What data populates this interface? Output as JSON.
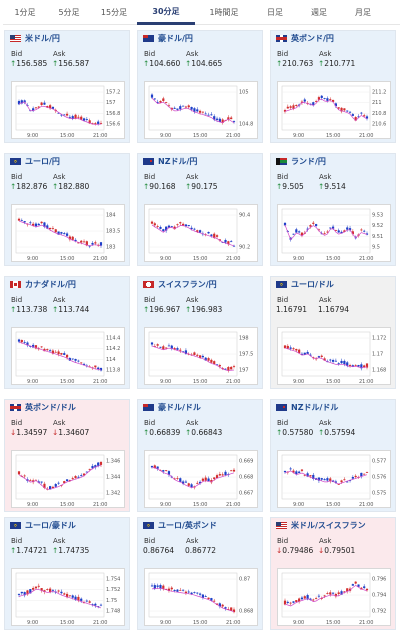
{
  "tabs": [
    "1分足",
    "5分足",
    "15分足",
    "30分足",
    "1時間足",
    "日足",
    "週足",
    "月足"
  ],
  "active_tab": 3,
  "labels": {
    "bid": "Bid",
    "ask": "Ask"
  },
  "x_ticks": [
    "9:00",
    "15:00",
    "21:00"
  ],
  "cards": [
    {
      "name": "米ドル/円",
      "flag": "us-jp",
      "bid": "156.585",
      "ask": "156.587",
      "dir": "up",
      "theme": "blue",
      "y_ticks": [
        "157.2",
        "157",
        "156.8",
        "156.6"
      ],
      "trend": [
        0.35,
        0.3,
        0.55,
        0.5,
        0.4,
        0.45,
        0.5,
        0.6,
        0.7,
        0.75,
        0.72,
        0.8,
        0.85,
        0.9,
        0.88
      ]
    },
    {
      "name": "豪ドル/円",
      "flag": "au-jp",
      "bid": "104.660",
      "ask": "104.665",
      "dir": "up",
      "theme": "blue",
      "y_ticks": [
        "105",
        "104.8"
      ],
      "trend": [
        0.2,
        0.35,
        0.3,
        0.45,
        0.55,
        0.5,
        0.45,
        0.55,
        0.6,
        0.65,
        0.7,
        0.8,
        0.85,
        0.75,
        0.85
      ]
    },
    {
      "name": "英ポンド/円",
      "flag": "gb-jp",
      "bid": "210.763",
      "ask": "210.771",
      "dir": "up",
      "theme": "blue",
      "y_ticks": [
        "211.2",
        "211",
        "210.8",
        "210.6"
      ],
      "trend": [
        0.55,
        0.5,
        0.45,
        0.3,
        0.35,
        0.4,
        0.2,
        0.3,
        0.25,
        0.5,
        0.55,
        0.6,
        0.8,
        0.65,
        0.75
      ]
    },
    {
      "name": "ユーロ/円",
      "flag": "eu-jp",
      "bid": "182.876",
      "ask": "182.880",
      "dir": "up",
      "theme": "blue",
      "y_ticks": [
        "184",
        "183.5",
        "183"
      ],
      "trend": [
        0.2,
        0.25,
        0.3,
        0.35,
        0.3,
        0.4,
        0.5,
        0.55,
        0.6,
        0.7,
        0.75,
        0.8,
        0.85,
        0.82,
        0.85
      ]
    },
    {
      "name": "NZドル/円",
      "flag": "nz-jp",
      "bid": "90.168",
      "ask": "90.175",
      "dir": "up",
      "theme": "blue",
      "y_ticks": [
        "90.4",
        "90.2"
      ],
      "trend": [
        0.3,
        0.4,
        0.5,
        0.35,
        0.4,
        0.3,
        0.35,
        0.45,
        0.5,
        0.55,
        0.6,
        0.65,
        0.75,
        0.8,
        0.85
      ]
    },
    {
      "name": "ランド/円",
      "flag": "za-jp",
      "bid": "9.505",
      "ask": "9.514",
      "dir": "up",
      "theme": "blue",
      "y_ticks": [
        "9.53",
        "9.52",
        "9.51",
        "9.5"
      ],
      "trend": [
        0.3,
        0.7,
        0.5,
        0.6,
        0.4,
        0.3,
        0.5,
        0.6,
        0.35,
        0.55,
        0.5,
        0.4,
        0.65,
        0.5,
        0.55
      ]
    },
    {
      "name": "カナダドル/円",
      "flag": "ca-jp",
      "bid": "113.738",
      "ask": "113.744",
      "dir": "up",
      "theme": "blue",
      "y_ticks": [
        "114.4",
        "114.2",
        "114",
        "113.8"
      ],
      "trend": [
        0.15,
        0.2,
        0.25,
        0.3,
        0.35,
        0.4,
        0.45,
        0.5,
        0.55,
        0.65,
        0.7,
        0.75,
        0.8,
        0.85,
        0.88
      ]
    },
    {
      "name": "スイスフラン/円",
      "flag": "ch-jp",
      "bid": "196.967",
      "ask": "196.983",
      "dir": "up",
      "theme": "blue",
      "y_ticks": [
        "198",
        "197.5",
        "197"
      ],
      "trend": [
        0.25,
        0.3,
        0.35,
        0.3,
        0.35,
        0.4,
        0.45,
        0.5,
        0.55,
        0.6,
        0.7,
        0.75,
        0.85,
        0.9,
        0.88
      ]
    },
    {
      "name": "ユーロ/ドル",
      "flag": "eu-us",
      "bid": "1.16791",
      "ask": "1.16794",
      "dir": "flat",
      "theme": "gray",
      "y_ticks": [
        "1.172",
        "1.17",
        "1.168"
      ],
      "trend": [
        0.3,
        0.35,
        0.4,
        0.5,
        0.45,
        0.6,
        0.55,
        0.65,
        0.7,
        0.75,
        0.72,
        0.8,
        0.78,
        0.82,
        0.8
      ]
    },
    {
      "name": "英ポンド/ドル",
      "flag": "gb-us",
      "bid": "1.34597",
      "ask": "1.34607",
      "dir": "down",
      "theme": "pink",
      "y_ticks": [
        "1.346",
        "1.344",
        "1.342"
      ],
      "trend": [
        0.4,
        0.5,
        0.6,
        0.55,
        0.7,
        0.8,
        0.75,
        0.7,
        0.6,
        0.55,
        0.5,
        0.45,
        0.3,
        0.2,
        0.15
      ]
    },
    {
      "name": "豪ドル/ドル",
      "flag": "au-us",
      "bid": "0.66839",
      "ask": "0.66843",
      "dir": "up",
      "theme": "blue",
      "y_ticks": [
        "0.669",
        "0.668",
        "0.667"
      ],
      "trend": [
        0.2,
        0.25,
        0.35,
        0.4,
        0.55,
        0.6,
        0.7,
        0.75,
        0.65,
        0.55,
        0.6,
        0.5,
        0.45,
        0.4,
        0.35
      ]
    },
    {
      "name": "NZドル/ドル",
      "flag": "nz-us",
      "bid": "0.57580",
      "ask": "0.57594",
      "dir": "up",
      "theme": "blue",
      "y_ticks": [
        "0.577",
        "0.576",
        "0.575"
      ],
      "trend": [
        0.35,
        0.3,
        0.4,
        0.35,
        0.45,
        0.5,
        0.55,
        0.6,
        0.55,
        0.65,
        0.6,
        0.55,
        0.5,
        0.45,
        0.4
      ]
    },
    {
      "name": "ユーロ/豪ドル",
      "flag": "eu-au",
      "bid": "1.74721",
      "ask": "1.74735",
      "dir": "up",
      "theme": "blue",
      "y_ticks": [
        "1.754",
        "1.752",
        "1.75",
        "1.748"
      ],
      "trend": [
        0.5,
        0.45,
        0.4,
        0.3,
        0.35,
        0.4,
        0.35,
        0.45,
        0.5,
        0.55,
        0.6,
        0.65,
        0.7,
        0.75,
        0.8
      ]
    },
    {
      "name": "ユーロ/英ポンド",
      "flag": "eu-gb",
      "bid": "0.86764",
      "ask": "0.86772",
      "dir": "flat",
      "theme": "blue",
      "y_ticks": [
        "0.87",
        "0.868"
      ],
      "trend": [
        0.3,
        0.28,
        0.3,
        0.35,
        0.38,
        0.4,
        0.42,
        0.45,
        0.5,
        0.55,
        0.6,
        0.7,
        0.8,
        0.85,
        0.9
      ]
    },
    {
      "name": "米ドル/スイスフラン",
      "flag": "us-ch",
      "bid": "0.79486",
      "ask": "0.79501",
      "dir": "down",
      "theme": "pink",
      "y_ticks": [
        "0.796",
        "0.794",
        "0.792"
      ],
      "trend": [
        0.7,
        0.75,
        0.65,
        0.6,
        0.55,
        0.65,
        0.55,
        0.5,
        0.45,
        0.5,
        0.4,
        0.35,
        0.2,
        0.3,
        0.35
      ]
    }
  ]
}
